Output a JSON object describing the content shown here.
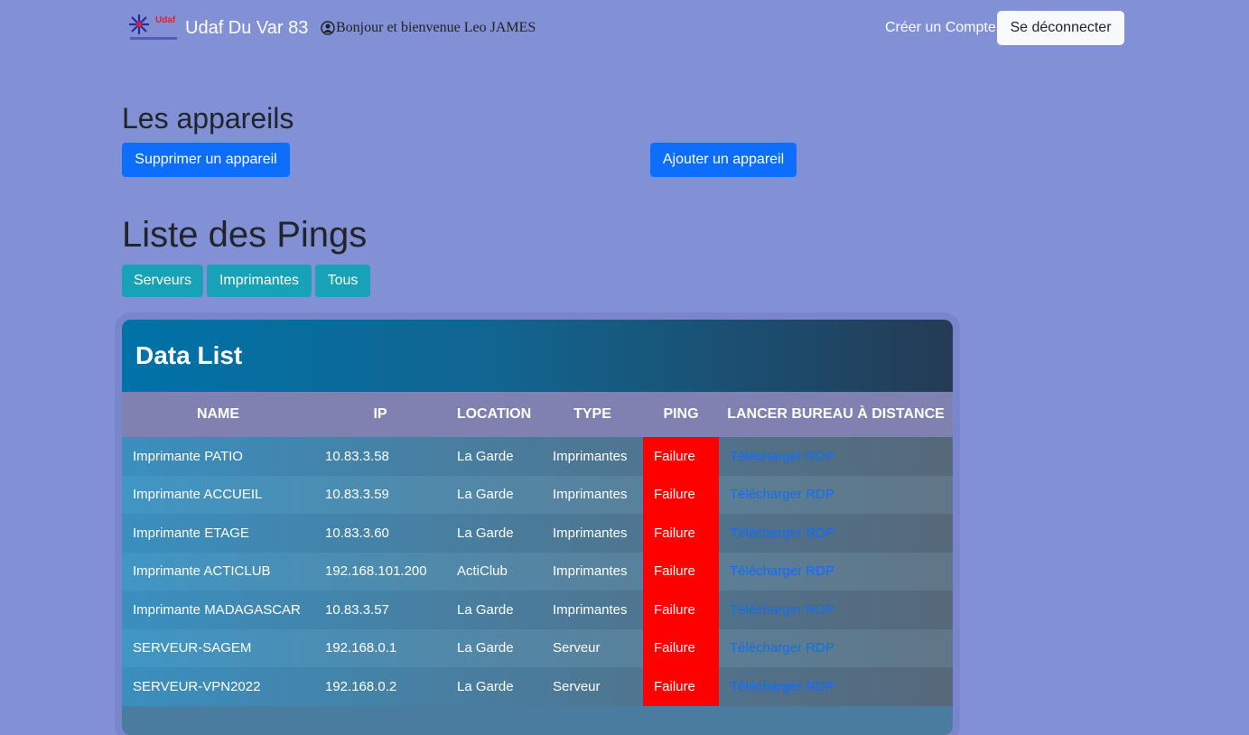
{
  "navbar": {
    "logo_text": "Udaf",
    "brand": "Udaf Du Var 83",
    "greeting": "Bonjour et bienvenue Leo JAMES",
    "link": "Créer un Compte",
    "logout": "Se déconnecter"
  },
  "devices": {
    "title": "Les appareils",
    "buttons": [
      "Supprimer un appareil",
      "Ajouter un appareil"
    ]
  },
  "pings": {
    "title": "Liste des Pings",
    "filters": [
      "Serveurs",
      "Imprimantes",
      "Tous"
    ]
  },
  "table": {
    "title": "Data List",
    "columns": [
      "NAME",
      "IP",
      "LOCATION",
      "TYPE",
      "PING",
      "LANCER BUREAU À DISTANCE"
    ],
    "rows": [
      [
        "Imprimante PATIO",
        "10.83.3.58",
        "La Garde",
        "Imprimantes",
        "Failure",
        "Télécharger RDP"
      ],
      [
        "Imprimante ACCUEIL",
        "10.83.3.59",
        "La Garde",
        "Imprimantes",
        "Failure",
        "Télécharger RDP"
      ],
      [
        "Imprimante ETAGE",
        "10.83.3.60",
        "La Garde",
        "Imprimantes",
        "Failure",
        "Télécharger RDP"
      ],
      [
        "Imprimante ACTICLUB",
        "192.168.101.200",
        "ActiClub",
        "Imprimantes",
        "Failure",
        "Télécharger RDP"
      ],
      [
        "Imprimante MADAGASCAR",
        "10.83.3.57",
        "La Garde",
        "Imprimantes",
        "Failure",
        "Télécharger RDP"
      ],
      [
        "SERVEUR-SAGEM",
        "192.168.0.1",
        "La Garde",
        "Serveur",
        "Failure",
        "Télécharger RDP"
      ],
      [
        "SERVEUR-VPN2022",
        "192.168.0.2",
        "La Garde",
        "Serveur",
        "Failure",
        "Télécharger RDP"
      ]
    ]
  }
}
